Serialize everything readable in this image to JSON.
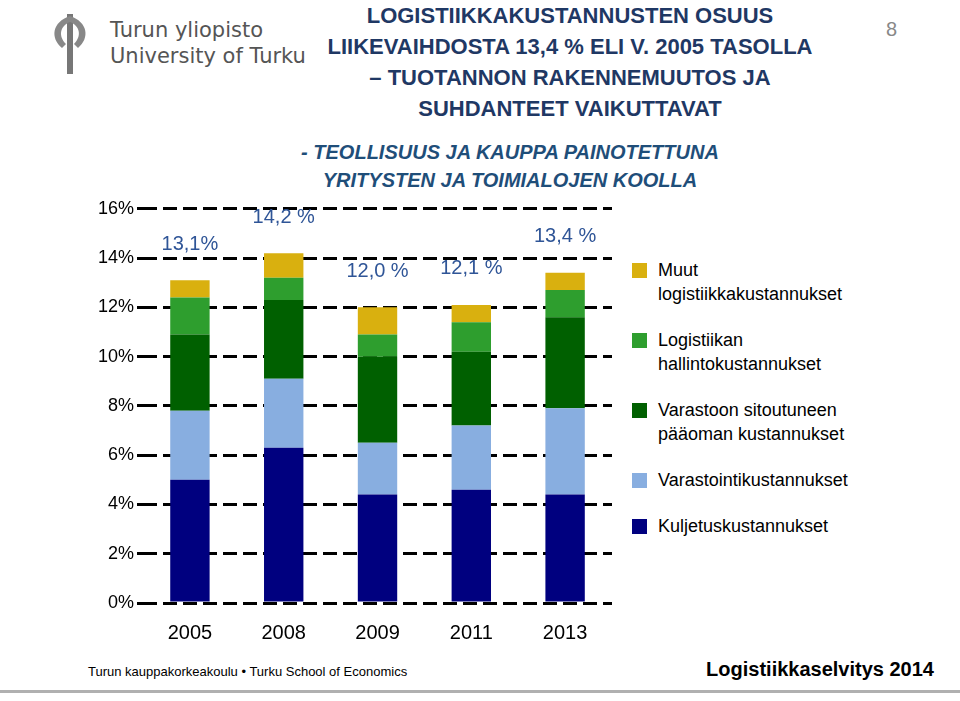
{
  "header": {
    "logo_lines": [
      "Turun yliopisto",
      "University of Turku"
    ],
    "page_number": "8"
  },
  "chart_data": {
    "type": "bar",
    "title": [
      "LOGISTIIKKAKUSTANNUSTEN OSUUS",
      "LIIKEVAIHDOSTA 13,4 % ELI V. 2005 TASOLLA",
      "– TUOTANNON RAKENNEMUUTOS JA",
      "SUHDANTEET VAIKUTTAVAT"
    ],
    "subtitle": [
      "- TEOLLISUUS JA KAUPPA PAINOTETTUNA",
      "YRITYSTEN JA TOIMIALOJEN KOOLLA"
    ],
    "categories": [
      "2005",
      "2008",
      "2009",
      "2011",
      "2013"
    ],
    "series": [
      {
        "name": "Kuljetuskustannukset",
        "color": "#00007f",
        "values": [
          5.0,
          6.3,
          4.4,
          4.6,
          4.4
        ]
      },
      {
        "name": "Varastointikustannukset",
        "color": "#88aee0",
        "values": [
          2.8,
          2.8,
          2.1,
          2.6,
          3.5
        ]
      },
      {
        "name": "Varastoon sitoutuneen pääoman kustannukset",
        "color": "#006000",
        "values": [
          3.1,
          3.2,
          3.5,
          3.0,
          3.7
        ]
      },
      {
        "name": "Logistiikan hallintokustannukset",
        "color": "#2e9e2e",
        "values": [
          1.5,
          0.9,
          0.9,
          1.2,
          1.1
        ]
      },
      {
        "name": "Muut logistiikkakustannukset",
        "color": "#d9b00f",
        "values": [
          0.7,
          1.0,
          1.1,
          0.7,
          0.7
        ]
      }
    ],
    "totals": [
      13.1,
      14.2,
      12.0,
      12.1,
      13.4
    ],
    "total_labels": [
      "13,1%",
      "14,2 %",
      "12,0 %",
      "12,1 %",
      "13,4 %"
    ],
    "stacked": true,
    "ylim": [
      0,
      16
    ],
    "yticks": [
      {
        "value": 0,
        "label": "0%"
      },
      {
        "value": 2,
        "label": "2%"
      },
      {
        "value": 4,
        "label": "4%"
      },
      {
        "value": 6,
        "label": "6%"
      },
      {
        "value": 8,
        "label": "8%"
      },
      {
        "value": 10,
        "label": "10%"
      },
      {
        "value": 12,
        "label": "12%"
      },
      {
        "value": 14,
        "label": "14%"
      },
      {
        "value": 16,
        "label": "16%"
      }
    ],
    "grid": true,
    "legend": "right"
  },
  "footer": {
    "left": "Turun kauppakorkeakoulu • Turku School of Economics",
    "right": "Logistiikkaselvitys 2014"
  }
}
